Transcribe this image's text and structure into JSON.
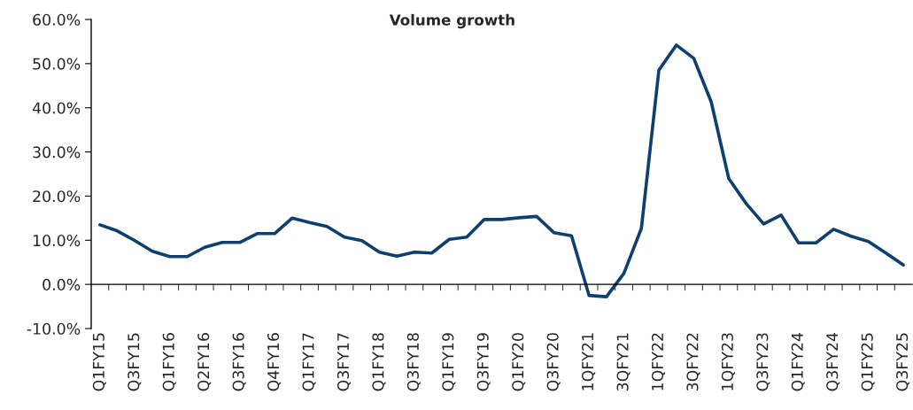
{
  "chart_data": {
    "type": "line",
    "title": "Volume growth",
    "categories": [
      "Q1FY15",
      null,
      "Q3FY15",
      null,
      "Q1FY16",
      null,
      "Q2FY16",
      null,
      "Q3FY16",
      null,
      "Q4FY16",
      null,
      "Q1FY17",
      null,
      "Q3FY17",
      null,
      "Q1FY18",
      null,
      "Q3FY18",
      null,
      "Q1FY19",
      null,
      "Q3FY19",
      null,
      "Q1FY20",
      null,
      "Q3FY20",
      null,
      "1QFY21",
      null,
      "3QFY21",
      null,
      "1QFY22",
      null,
      "3QFY22",
      null,
      "1QFY23",
      null,
      "Q3FY23",
      null,
      "Q1FY24",
      null,
      "Q3FY24",
      null,
      "Q1FY25",
      null,
      "Q3FY25"
    ],
    "series": [
      {
        "color": "#0e3f6f",
        "values": [
          13.5,
          12.1,
          9.9,
          7.5,
          6.3,
          6.3,
          8.4,
          9.5,
          9.5,
          11.5,
          11.5,
          15.0,
          14.0,
          13.1,
          10.7,
          9.9,
          7.3,
          6.4,
          7.3,
          7.1,
          10.2,
          10.7,
          14.7,
          14.7,
          15.1,
          15.4,
          11.7,
          11.0,
          -2.5,
          -2.8,
          2.5,
          12.7,
          48.5,
          54.2,
          51.2,
          41.3,
          24.0,
          18.3,
          13.7,
          15.7,
          9.4,
          9.4,
          12.5,
          10.9,
          9.7,
          7.1,
          4.4
        ]
      }
    ],
    "ylim": [
      -10,
      60
    ],
    "yticks": [
      {
        "value": -10,
        "label": "-10.0%"
      },
      {
        "value": 0,
        "label": "0.0%"
      },
      {
        "value": 10,
        "label": "10.0%"
      },
      {
        "value": 20,
        "label": "20.0%"
      },
      {
        "value": 30,
        "label": "30.0%"
      },
      {
        "value": 40,
        "label": "40.0%"
      },
      {
        "value": 50,
        "label": "50.0%"
      },
      {
        "value": 60,
        "label": "60.0%"
      }
    ],
    "marker": "none",
    "line_style": "solid"
  }
}
